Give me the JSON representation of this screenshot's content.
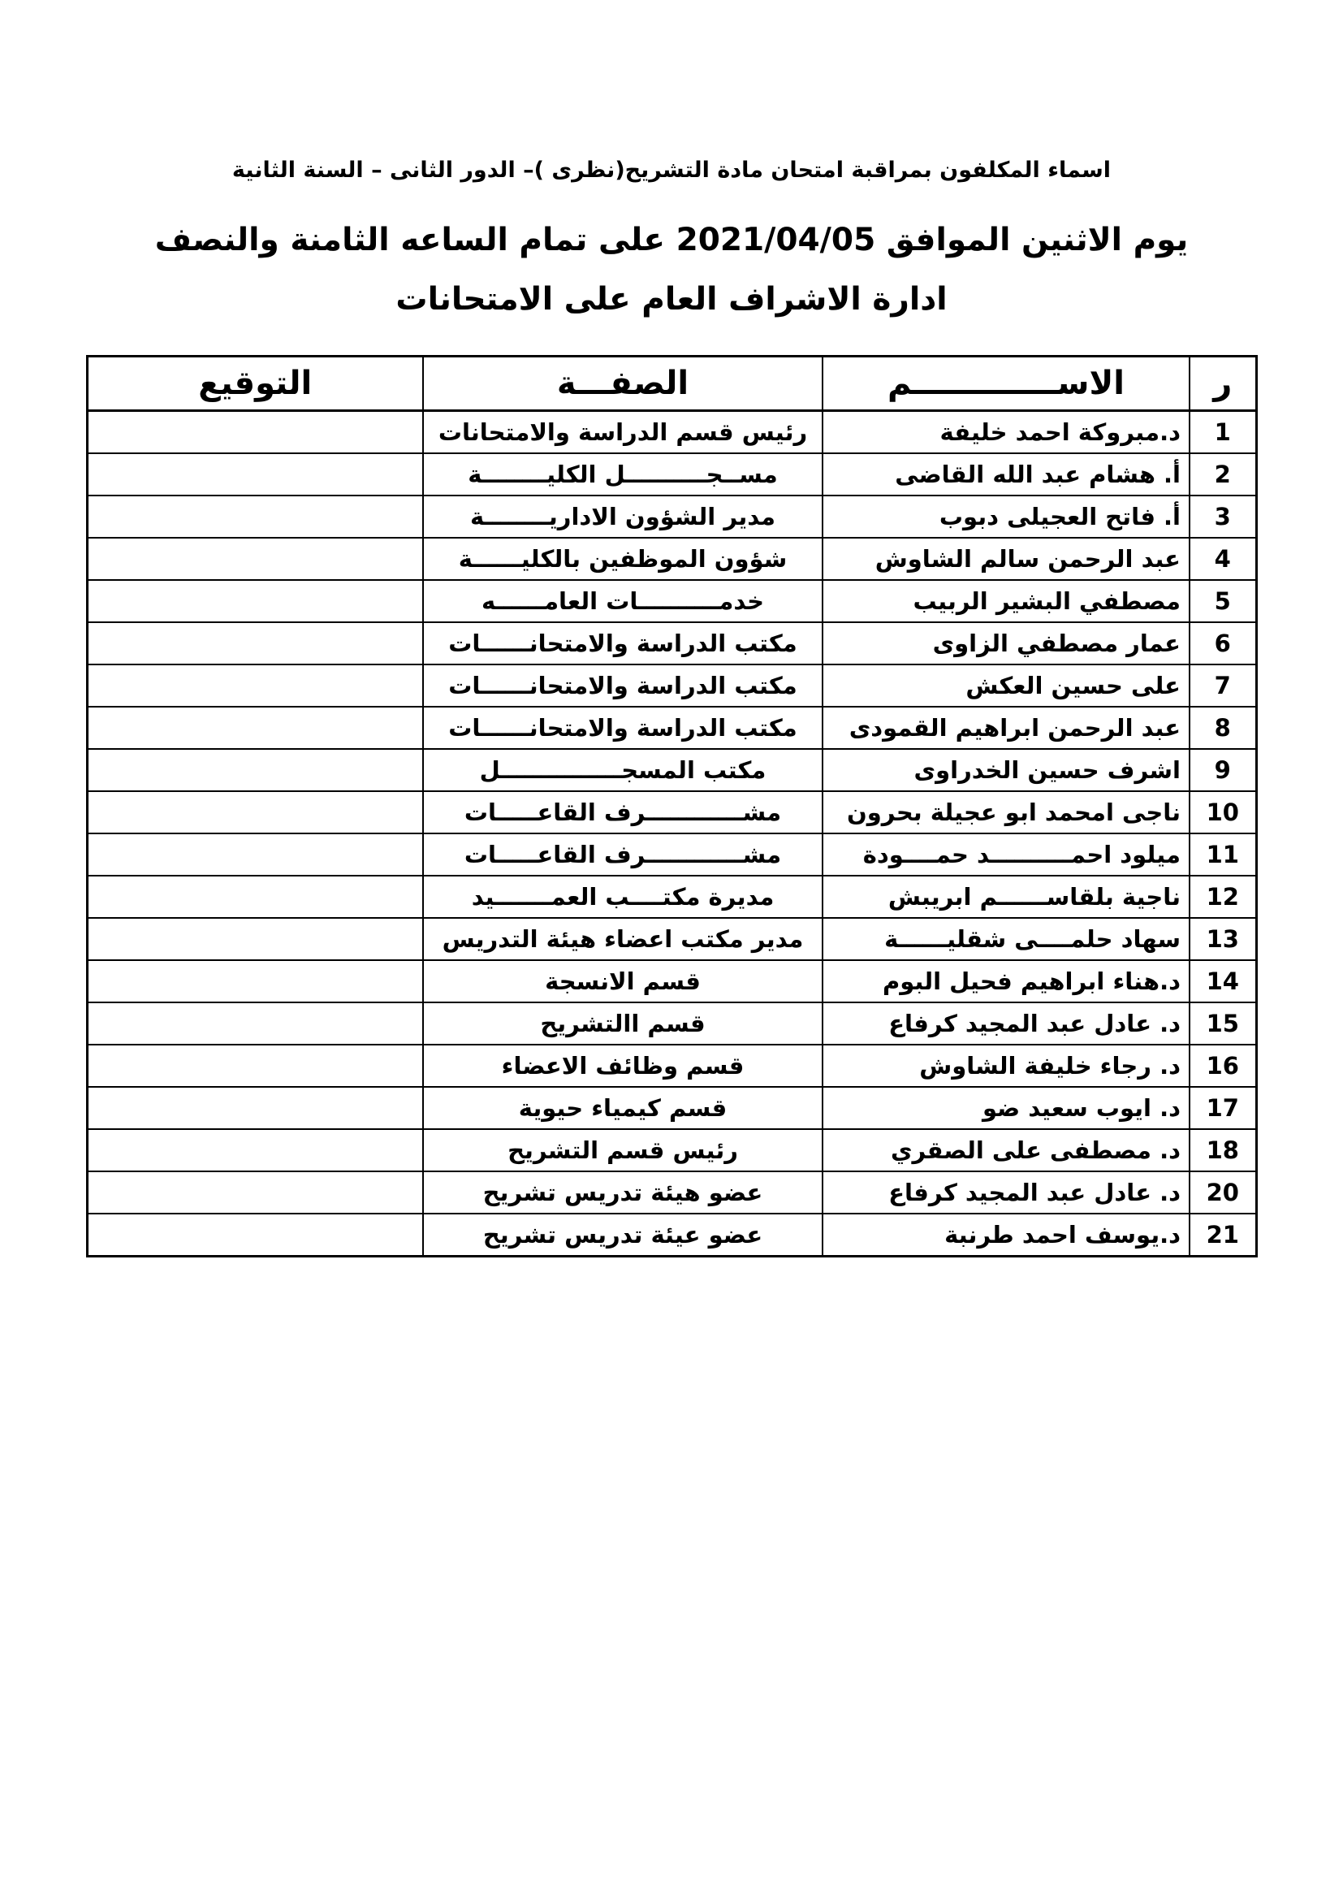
{
  "document": {
    "title_line1": "اسماء المكلفون بمراقبة امتحان مادة التشريح(نظرى )– الدور الثانى – السنة الثانية",
    "title_line2": "يوم الاثنين الموافق 2021/04/05 على تمام الساعه الثامنة والنصف",
    "title_line3": "ادارة الاشراف العام على الامتحانات"
  },
  "table": {
    "columns": {
      "no": "ر",
      "name": "الاســـــــــــــم",
      "role": "الصفـــة",
      "signature": "التوقيع"
    },
    "rows": [
      {
        "no": "1",
        "name": "د.مبروكة احمد خليفة",
        "role": "رئيس قسم الدراسة والامتحانات",
        "signature": ""
      },
      {
        "no": "2",
        "name": "أ. هشام عبد الله القاضى",
        "role": "مســجــــــــــل الكليــــــــة",
        "signature": ""
      },
      {
        "no": "3",
        "name": "أ. فاتح العجيلى دبوب",
        "role": "مدير الشؤون الاداريــــــــة",
        "signature": ""
      },
      {
        "no": "4",
        "name": "عبد الرحمن سالم الشاوش",
        "role": "شؤون الموظفين بالكليــــــة",
        "signature": ""
      },
      {
        "no": "5",
        "name": "مصطفي البشير الربيب",
        "role": "خدمــــــــــات العامــــــه",
        "signature": ""
      },
      {
        "no": "6",
        "name": "عمار مصطفي الزاوى",
        "role": "مكتب الدراسة والامتحانــــــات",
        "signature": ""
      },
      {
        "no": "7",
        "name": "على حسين العكش",
        "role": "مكتب الدراسة والامتحانــــــات",
        "signature": ""
      },
      {
        "no": "8",
        "name": "عبد الرحمن ابراهيم القمودى",
        "role": "مكتب الدراسة والامتحانــــــات",
        "signature": ""
      },
      {
        "no": "9",
        "name": "اشرف حسين الخدراوى",
        "role": "مكتب المسجـــــــــــــــل",
        "signature": ""
      },
      {
        "no": "10",
        "name": "ناجى امحمد ابو عجيلة بحرون",
        "role": "مشــــــــــــرف القاعـــــات",
        "signature": ""
      },
      {
        "no": "11",
        "name": "ميلود احمــــــــــد حمــــودة",
        "role": "مشــــــــــــرف القاعـــــات",
        "signature": ""
      },
      {
        "no": "12",
        "name": "ناجية بلقاســــــم ابريبش",
        "role": "مديرة مكتــــب العمـــــــيد",
        "signature": ""
      },
      {
        "no": "13",
        "name": "سهاد حلمــــى شقليــــــة",
        "role": "مدير مكتب اعضاء هيئة التدريس",
        "signature": ""
      },
      {
        "no": "14",
        "name": "د.هناء ابراهيم فحيل البوم",
        "role": "قسم الانسجة",
        "signature": ""
      },
      {
        "no": "15",
        "name": "د. عادل  عبد المجيد كرفاع",
        "role": "قسم االتشريح",
        "signature": ""
      },
      {
        "no": "16",
        "name": "د. رجاء خليفة الشاوش",
        "role": "قسم وظائف الاعضاء",
        "signature": ""
      },
      {
        "no": "17",
        "name": "د. ايوب سعيد ضو",
        "role": "قسم كيمياء حيوية",
        "signature": ""
      },
      {
        "no": "18",
        "name": "د. مصطفى على الصقري",
        "role": "رئيس قسم التشريح",
        "signature": ""
      },
      {
        "no": "20",
        "name": "د. عادل عبد المجيد كرفاع",
        "role": "عضو هيئة تدريس تشريح",
        "signature": ""
      },
      {
        "no": "21",
        "name": "د.يوسف احمد طرنبة",
        "role": "عضو عيئة تدريس تشريح",
        "signature": ""
      }
    ]
  }
}
